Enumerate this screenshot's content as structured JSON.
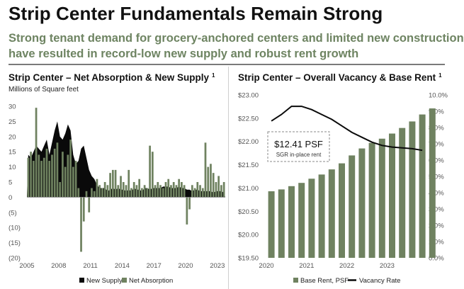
{
  "page": {
    "title": "Strip Center Fundamentals Remain Strong",
    "subtitle_lines": [
      "Strong tenant demand for grocery-anchored centers and limited new construction",
      "have resulted in record-low new supply and robust rent growth"
    ]
  },
  "colors": {
    "bar_green": "#6f8260",
    "supply_black": "#0a0a0a",
    "subtitle_green": "#6e8462",
    "axis_grey": "#555555"
  },
  "chart_data": [
    {
      "type": "bar",
      "title": "Strip Center – Net Absorption & New Supply",
      "footnote": "1",
      "ylabel": "Millions of Square feet",
      "ylim": [
        -20,
        30
      ],
      "yticks": [
        30,
        25,
        20,
        15,
        10,
        5,
        0,
        -5,
        -10,
        -15,
        -20
      ],
      "ytick_labels": [
        "30",
        "25",
        "20",
        "15",
        "10",
        "5",
        "0",
        "(5)",
        "(10)",
        "(15)",
        "(20)"
      ],
      "xticks": [
        2005,
        2008,
        2011,
        2014,
        2017,
        2020,
        2023
      ],
      "grid": false,
      "legend": "bottom",
      "x_start": 2005,
      "x_step": 0.25,
      "series": [
        {
          "name": "New Supply",
          "kind": "area",
          "color": "#0a0a0a",
          "values": [
            14,
            13,
            15,
            17,
            16,
            15,
            17,
            19,
            14,
            18,
            22,
            25,
            20,
            19,
            21,
            24,
            22,
            14,
            11,
            12,
            16,
            17,
            13,
            9,
            7,
            6,
            4,
            3,
            3,
            3,
            2,
            2.5,
            3,
            2.5,
            3,
            2.5,
            2.5,
            2,
            2.5,
            2,
            3,
            2.5,
            2.5,
            2,
            3,
            3,
            2.5,
            3,
            3,
            3,
            3,
            3.5,
            3.5,
            3.5,
            3,
            3,
            3,
            3.5,
            3,
            3,
            2.5,
            2.5,
            2,
            2.5,
            2.5,
            2,
            2,
            2,
            2,
            2,
            1.5,
            2,
            2,
            2,
            1.5
          ]
        },
        {
          "name": "Net Absorption",
          "kind": "bar",
          "color": "#6f8260",
          "values": [
            13,
            15,
            12,
            29.5,
            14,
            12,
            13,
            16,
            12,
            14,
            16,
            18,
            5,
            15,
            10,
            14,
            19,
            10,
            12,
            3,
            -18,
            -8,
            2,
            -5,
            3,
            2,
            6,
            4,
            3,
            5,
            4,
            8,
            9,
            9,
            4,
            7,
            5,
            4,
            9,
            3,
            5,
            4,
            6,
            3,
            4,
            3,
            17,
            15,
            4,
            5,
            4,
            3,
            5,
            6,
            4,
            5,
            4,
            6,
            5,
            4,
            -9,
            -4,
            4,
            3,
            5,
            4,
            3,
            18,
            10,
            11,
            8,
            5,
            7,
            4,
            5
          ]
        }
      ]
    },
    {
      "type": "bar_line",
      "title": "Strip Center – Overall Vacancy & Base Rent",
      "footnote": "1",
      "y_left_lim": [
        19.5,
        23.0
      ],
      "y_left_ticks": [
        23.0,
        22.5,
        22.0,
        21.5,
        21.0,
        20.5,
        20.0,
        19.5
      ],
      "y_left_labels": [
        "$23.00",
        "$22.50",
        "$22.00",
        "$21.50",
        "$21.00",
        "$20.50",
        "$20.00",
        "$19.50"
      ],
      "y_right_lim": [
        0.0,
        10.0
      ],
      "y_right_ticks": [
        10,
        9,
        8,
        7,
        6,
        5,
        4,
        3,
        2,
        1,
        0
      ],
      "y_right_labels": [
        "10.0%",
        "9.0%",
        "8.0%",
        "7.0%",
        "6.0%",
        "5.0%",
        "4.0%",
        "3.0%",
        "2.0%",
        "1.0%",
        "0.0%"
      ],
      "xticks": [
        2020,
        2021,
        2022,
        2023
      ],
      "grid": false,
      "legend": "bottom",
      "x_start": 2020,
      "x_step": 0.25,
      "series": [
        {
          "name": "Base Rent, PSF",
          "kind": "bar",
          "axis": "left",
          "color": "#6f8260",
          "values": [
            20.93,
            20.97,
            21.04,
            21.11,
            21.2,
            21.29,
            21.4,
            21.53,
            21.7,
            21.85,
            21.97,
            22.06,
            22.17,
            22.29,
            22.43,
            22.58,
            22.71
          ]
        },
        {
          "name": "Vacancy Rate",
          "kind": "line",
          "axis": "right",
          "color": "#0a0a0a",
          "values": [
            8.4,
            8.8,
            9.3,
            9.3,
            9.1,
            8.8,
            8.5,
            8.1,
            7.7,
            7.4,
            7.1,
            6.9,
            6.8,
            6.75,
            6.7,
            6.6
          ]
        }
      ],
      "annotation": {
        "value": "$12.41 PSF",
        "label": "SGR in-place rent"
      }
    }
  ]
}
